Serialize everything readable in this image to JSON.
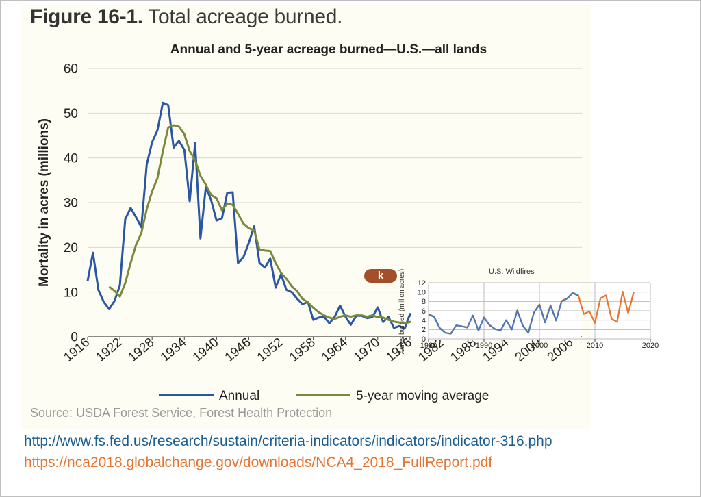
{
  "figure": {
    "label": "Figure 16-1.",
    "caption": "Total acreage burned.",
    "source": "Source: USDA Forest Service, Forest Health Protection"
  },
  "links": {
    "url1": "http://www.fs.fed.us/research/sustain/criteria-indicators/indicators/indicator-316.php",
    "url2": "https://nca2018.globalchange.gov/downloads/NCA4_2018_FullReport.pdf"
  },
  "colors": {
    "annual": "#2a56a3",
    "moving_avg": "#7a8a3a",
    "inset_blue": "#4a78b8",
    "inset_orange": "#e8742e",
    "badge": "#a3502a"
  },
  "inset": {
    "badge": "k",
    "title": "U.S. Wildfires"
  },
  "chart_data": [
    {
      "type": "line",
      "title": "Annual and 5-year acreage burned—U.S.—all lands",
      "xlabel": "",
      "ylabel": "Mortality in acres (millions)",
      "xlim": [
        1916,
        2008
      ],
      "ylim": [
        0,
        60
      ],
      "yticks": [
        0,
        10,
        20,
        30,
        40,
        50,
        60
      ],
      "xticks": [
        1916,
        1922,
        1928,
        1934,
        1940,
        1946,
        1952,
        1958,
        1964,
        1970,
        1976,
        1982,
        1988,
        1994,
        2000,
        2006
      ],
      "grid": true,
      "legend_position": "bottom",
      "series": [
        {
          "name": "Annual",
          "color": "#2a56a3",
          "x": [
            1916,
            1917,
            1918,
            1919,
            1920,
            1921,
            1922,
            1923,
            1924,
            1925,
            1926,
            1927,
            1928,
            1929,
            1930,
            1931,
            1932,
            1933,
            1934,
            1935,
            1936,
            1937,
            1938,
            1939,
            1940,
            1941,
            1942,
            1943,
            1944,
            1945,
            1946,
            1947,
            1948,
            1949,
            1950,
            1951,
            1952,
            1953,
            1954,
            1955,
            1956,
            1957,
            1958,
            1959,
            1960,
            1961,
            1962,
            1963,
            1964,
            1965,
            1966,
            1967,
            1968,
            1969,
            1970,
            1971,
            1972,
            1973,
            1974,
            1975,
            1976,
            1977,
            1978,
            1979,
            1980,
            1981,
            1982,
            1983,
            1984,
            1985,
            1986,
            1987,
            1988,
            1989,
            1990,
            1991,
            1992,
            1993,
            1994,
            1995,
            1996,
            1997,
            1998,
            1999,
            2000,
            2001,
            2002,
            2003,
            2004,
            2005,
            2006,
            2007
          ],
          "y": [
            12.5,
            18.8,
            10.5,
            7.8,
            6.2,
            8.0,
            11.5,
            26.3,
            28.8,
            26.8,
            24.5,
            38.5,
            43.5,
            46.2,
            52.3,
            51.8,
            42.3,
            43.8,
            41.8,
            30.3,
            43.3,
            22.0,
            33.5,
            30.5,
            26.0,
            26.5,
            32.2,
            32.3,
            16.5,
            17.8,
            21.0,
            24.7,
            16.5,
            15.5,
            17.5,
            11.0,
            14.0,
            10.5,
            10.0,
            8.5,
            7.3,
            7.8,
            3.8,
            4.3,
            4.5,
            3.0,
            4.5,
            7.0,
            4.5,
            2.7,
            4.7,
            4.7,
            4.2,
            4.4,
            6.6,
            3.3,
            4.5,
            2.0,
            2.4,
            1.8,
            5.1,
            3.2,
            3.9,
            2.9,
            5.3,
            4.8,
            2.4,
            1.3,
            1.1,
            2.9,
            2.7,
            2.5,
            5.0,
            1.8,
            4.6,
            3.0,
            2.1,
            1.8,
            4.0,
            2.0,
            6.1,
            2.9,
            1.3,
            5.6,
            7.4,
            3.6,
            7.2,
            4.0,
            8.1,
            8.7,
            9.9,
            9.3
          ]
        },
        {
          "name": "5-year moving average",
          "color": "#7a8a3a",
          "x": [
            1920,
            1921,
            1922,
            1923,
            1924,
            1925,
            1926,
            1927,
            1928,
            1929,
            1930,
            1931,
            1932,
            1933,
            1934,
            1935,
            1936,
            1937,
            1938,
            1939,
            1940,
            1941,
            1942,
            1943,
            1944,
            1945,
            1946,
            1947,
            1948,
            1949,
            1950,
            1951,
            1952,
            1953,
            1954,
            1955,
            1956,
            1957,
            1958,
            1959,
            1960,
            1961,
            1962,
            1963,
            1964,
            1965,
            1966,
            1967,
            1968,
            1969,
            1970,
            1971,
            1972,
            1973,
            1974,
            1975,
            1976,
            1977,
            1978,
            1979,
            1980,
            1981,
            1982,
            1983,
            1984,
            1985,
            1986,
            1987,
            1988,
            1989,
            1990,
            1991,
            1992,
            1993,
            1994,
            1995,
            1996,
            1997,
            1998,
            1999,
            2000,
            2001,
            2002,
            2003,
            2004,
            2005,
            2006,
            2007
          ],
          "y": [
            11.2,
            10.3,
            9.0,
            12.0,
            16.5,
            20.5,
            23.2,
            28.5,
            32.5,
            35.5,
            41.5,
            46.8,
            47.3,
            47.0,
            45.3,
            41.5,
            39.5,
            36.0,
            34.0,
            31.7,
            31.0,
            28.3,
            29.8,
            29.5,
            27.5,
            25.3,
            24.3,
            23.8,
            19.5,
            19.3,
            19.2,
            16.5,
            14.3,
            13.0,
            11.3,
            10.2,
            8.5,
            7.7,
            6.5,
            5.5,
            4.8,
            4.3,
            4.0,
            4.5,
            4.8,
            4.5,
            4.8,
            4.8,
            4.5,
            4.8,
            4.4,
            4.3,
            3.8,
            3.4,
            3.2,
            3.0,
            3.3,
            3.6,
            3.6,
            3.6,
            4.0,
            4.0,
            3.8,
            3.3,
            2.9,
            2.6,
            2.4,
            2.6,
            2.8,
            3.0,
            3.2,
            3.3,
            3.1,
            3.0,
            3.2,
            3.2,
            3.3,
            3.6,
            3.6,
            3.6,
            4.6,
            4.8,
            5.1,
            5.4,
            6.3,
            6.6,
            7.8,
            8.4
          ]
        }
      ]
    },
    {
      "type": "line",
      "title": "U.S. Wildfires",
      "xlabel": "",
      "ylabel": "Acres burned (million acres)",
      "xlim": [
        1980,
        2020
      ],
      "ylim": [
        0,
        12
      ],
      "yticks": [
        0,
        2,
        4,
        6,
        8,
        10,
        12
      ],
      "xticks": [
        1980,
        1990,
        2000,
        2010,
        2020
      ],
      "grid": true,
      "series": [
        {
          "color": "#e8742e",
          "x": [
            1980,
            1981,
            1982,
            1983,
            1984,
            1985,
            1986,
            1987,
            1988,
            1989,
            1990,
            1991,
            1992,
            1993,
            1994,
            1995,
            1996,
            1997,
            1998,
            1999,
            2000,
            2001,
            2002,
            2003,
            2004,
            2005,
            2006,
            2007,
            2008,
            2009,
            2010,
            2011,
            2012,
            2013,
            2014,
            2015,
            2016,
            2017
          ],
          "y": [
            5.3,
            4.8,
            2.4,
            1.3,
            1.1,
            2.9,
            2.7,
            2.5,
            5.0,
            1.8,
            4.6,
            3.0,
            2.1,
            1.8,
            4.0,
            2.0,
            6.1,
            2.9,
            1.3,
            5.6,
            7.4,
            3.6,
            7.2,
            4.0,
            8.1,
            8.7,
            9.9,
            9.3,
            5.3,
            5.9,
            3.4,
            8.7,
            9.3,
            4.3,
            3.6,
            10.1,
            5.5,
            10.0
          ]
        },
        {
          "color": "#4a78b8",
          "x": [
            1980,
            1981,
            1982,
            1983,
            1984,
            1985,
            1986,
            1987,
            1988,
            1989,
            1990,
            1991,
            1992,
            1993,
            1994,
            1995,
            1996,
            1997,
            1998,
            1999,
            2000,
            2001,
            2002,
            2003,
            2004,
            2005,
            2006,
            2007
          ],
          "y": [
            5.2,
            4.7,
            2.3,
            1.3,
            1.1,
            2.9,
            2.7,
            2.4,
            5.0,
            1.8,
            4.6,
            2.9,
            2.1,
            1.8,
            4.0,
            2.0,
            6.0,
            2.8,
            1.3,
            5.6,
            7.3,
            3.5,
            7.1,
            3.9,
            8.0,
            8.6,
            9.8,
            9.2
          ]
        }
      ]
    }
  ]
}
